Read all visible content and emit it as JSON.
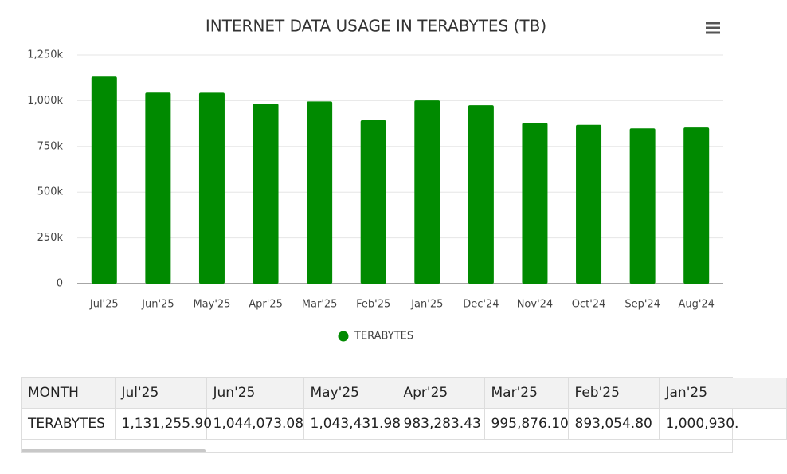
{
  "chart_data": {
    "type": "bar",
    "title": "INTERNET DATA USAGE IN TERABYTES (TB)",
    "categories": [
      "Jul'25",
      "Jun'25",
      "May'25",
      "Apr'25",
      "Mar'25",
      "Feb'25",
      "Jan'25",
      "Dec'24",
      "Nov'24",
      "Oct'24",
      "Sep'24",
      "Aug'24"
    ],
    "series": [
      {
        "name": "TERABYTES",
        "color": "#008a00",
        "values": [
          1131255.9,
          1044073.08,
          1043431.98,
          983283.43,
          995876.1,
          893054.8,
          1000930,
          975000,
          878000,
          868000,
          848000,
          853000
        ]
      }
    ],
    "ylim": [
      0,
      1250000
    ],
    "yticks": [
      0,
      {
        "value": 250000,
        "label": "250k"
      },
      {
        "value": 500000,
        "label": "500k"
      },
      {
        "value": 750000,
        "label": "750k"
      },
      {
        "value": 1000000,
        "label": "1,000k"
      },
      {
        "value": 1250000,
        "label": "1,250k"
      }
    ],
    "grid": true,
    "legend": "bottom"
  },
  "table": {
    "rows": [
      [
        "MONTH",
        "Jul'25",
        "Jun'25",
        "May'25",
        "Apr'25",
        "Mar'25",
        "Feb'25",
        "Jan'25"
      ],
      [
        "TERABYTES",
        "1,131,255.90",
        "1,044,073.08",
        "1,043,431.98",
        "983,283.43",
        "995,876.10",
        "893,054.80",
        "1,000,930."
      ]
    ]
  }
}
